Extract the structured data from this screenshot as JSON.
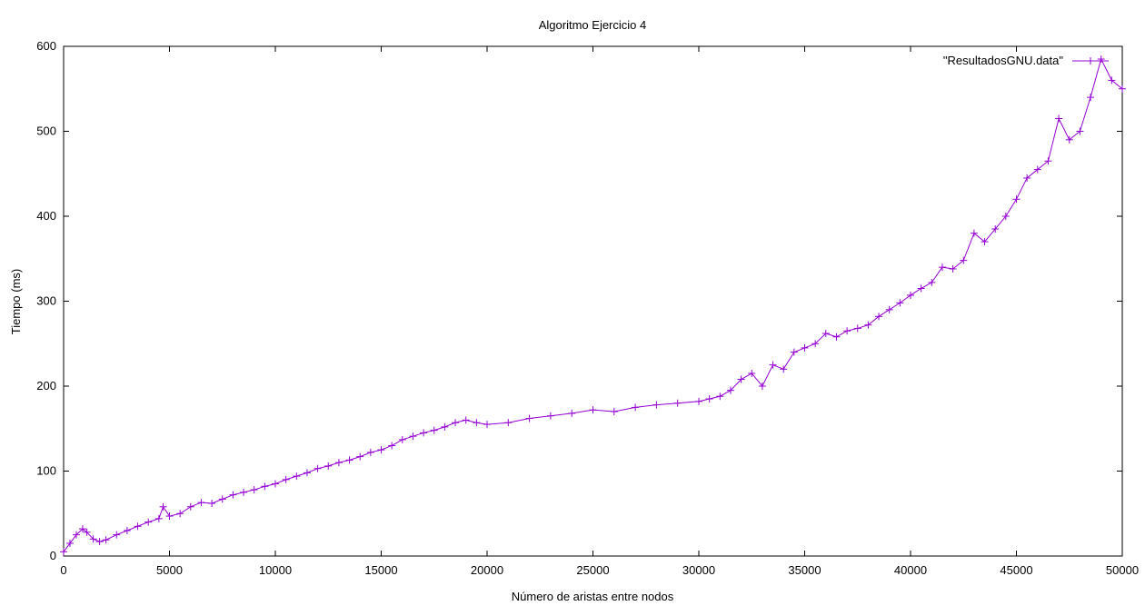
{
  "chart_data": {
    "type": "line",
    "title": "Algoritmo Ejercicio 4",
    "xlabel": "Número de aristas entre nodos",
    "ylabel": "Tiempo (ms)",
    "xlim": [
      0,
      50000
    ],
    "ylim": [
      0,
      600
    ],
    "xticks": [
      0,
      5000,
      10000,
      15000,
      20000,
      25000,
      30000,
      35000,
      40000,
      45000,
      50000
    ],
    "yticks": [
      0,
      100,
      200,
      300,
      400,
      500,
      600
    ],
    "grid": false,
    "legend_position": "top-right",
    "series_color": "#9400d3",
    "marker": "plus",
    "series": [
      {
        "name": "\"ResultadosGNU.data\"",
        "x": [
          0,
          300,
          600,
          900,
          1100,
          1400,
          1700,
          2000,
          2500,
          3000,
          3500,
          4000,
          4500,
          4700,
          5000,
          5500,
          6000,
          6500,
          7000,
          7500,
          8000,
          8500,
          9000,
          9500,
          10000,
          10500,
          11000,
          11500,
          12000,
          12500,
          13000,
          13500,
          14000,
          14500,
          15000,
          15500,
          16000,
          16500,
          17000,
          17500,
          18000,
          18500,
          19000,
          19500,
          20000,
          21000,
          22000,
          23000,
          24000,
          25000,
          26000,
          27000,
          28000,
          29000,
          30000,
          30500,
          31000,
          31500,
          32000,
          32500,
          33000,
          33500,
          34000,
          34500,
          35000,
          35500,
          36000,
          36500,
          37000,
          37500,
          38000,
          38500,
          39000,
          39500,
          40000,
          40500,
          41000,
          41500,
          42000,
          42500,
          43000,
          43500,
          44000,
          44500,
          45000,
          45500,
          46000,
          46500,
          47000,
          47500,
          48000,
          48500,
          49000,
          49500,
          50000
        ],
        "values": [
          5,
          15,
          25,
          32,
          28,
          20,
          17,
          19,
          25,
          30,
          35,
          40,
          44,
          58,
          47,
          50,
          58,
          63,
          62,
          67,
          72,
          75,
          78,
          82,
          85,
          90,
          94,
          98,
          103,
          106,
          110,
          113,
          117,
          122,
          125,
          130,
          137,
          141,
          145,
          148,
          152,
          157,
          160,
          157,
          155,
          157,
          162,
          165,
          168,
          172,
          170,
          175,
          178,
          180,
          182,
          185,
          188,
          195,
          208,
          215,
          200,
          225,
          220,
          240,
          245,
          250,
          262,
          258,
          265,
          268,
          272,
          282,
          290,
          298,
          307,
          315,
          322,
          340,
          338,
          348,
          380,
          370,
          385,
          400,
          420,
          445,
          455,
          465,
          515,
          490,
          500,
          540,
          585,
          560,
          550
        ]
      }
    ]
  }
}
